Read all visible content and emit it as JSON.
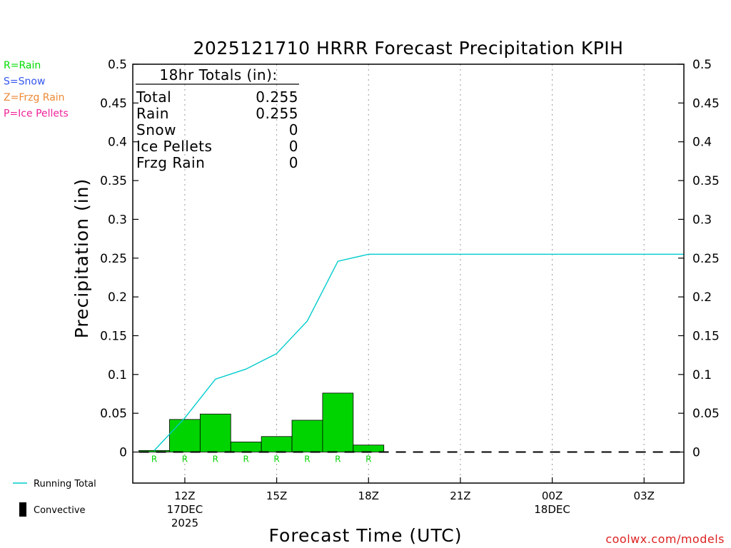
{
  "chart_data": {
    "type": "bar",
    "title": "2025121710 HRRR Forecast Precipitation KPIH",
    "xlabel": "Forecast Time (UTC)",
    "ylabel": "Precipitation (in)",
    "ylim": [
      -0.04,
      0.5
    ],
    "xlim_hours": [
      10.3,
      28.3
    ],
    "y_ticks": [
      "0",
      "0.05",
      "0.1",
      "0.15",
      "0.2",
      "0.25",
      "0.3",
      "0.35",
      "0.4",
      "0.45",
      "0.5"
    ],
    "y_tick_values": [
      0,
      0.05,
      0.1,
      0.15,
      0.2,
      0.25,
      0.3,
      0.35,
      0.4,
      0.45,
      0.5
    ],
    "x_ticks": [
      {
        "hour": 12,
        "label": "12Z",
        "sub1": "17DEC",
        "sub2": "2025"
      },
      {
        "hour": 15,
        "label": "15Z",
        "sub1": "",
        "sub2": ""
      },
      {
        "hour": 18,
        "label": "18Z",
        "sub1": "",
        "sub2": ""
      },
      {
        "hour": 21,
        "label": "21Z",
        "sub1": "",
        "sub2": ""
      },
      {
        "hour": 24,
        "label": "00Z",
        "sub1": "18DEC",
        "sub2": ""
      },
      {
        "hour": 27,
        "label": "03Z",
        "sub1": "",
        "sub2": ""
      }
    ],
    "bars": [
      {
        "hour": 11,
        "value": 0.002,
        "ptype": "R"
      },
      {
        "hour": 12,
        "value": 0.042,
        "ptype": "R"
      },
      {
        "hour": 13,
        "value": 0.049,
        "ptype": "R"
      },
      {
        "hour": 14,
        "value": 0.013,
        "ptype": "R"
      },
      {
        "hour": 15,
        "value": 0.02,
        "ptype": "R"
      },
      {
        "hour": 16,
        "value": 0.041,
        "ptype": "R"
      },
      {
        "hour": 17,
        "value": 0.076,
        "ptype": "R"
      },
      {
        "hour": 18,
        "value": 0.009,
        "ptype": "R"
      }
    ],
    "running_total": {
      "name": "Running Total",
      "x": [
        11,
        12,
        13,
        14,
        15,
        16,
        17,
        18,
        19,
        20,
        21,
        22,
        23,
        24,
        25,
        26,
        27,
        28,
        28.3
      ],
      "y": [
        0.002,
        0.044,
        0.094,
        0.107,
        0.127,
        0.169,
        0.246,
        0.255,
        0.255,
        0.255,
        0.255,
        0.255,
        0.255,
        0.255,
        0.255,
        0.255,
        0.255,
        0.255,
        0.255
      ]
    },
    "convective_line_from_hour": 10.5,
    "totals_box": {
      "heading": "18hr Totals (in):",
      "rows": [
        {
          "label": "Total",
          "value": "0.255"
        },
        {
          "label": "Rain",
          "value": "0.255"
        },
        {
          "label": "Snow",
          "value": "0"
        },
        {
          "label": "Ice Pellets",
          "value": "0"
        },
        {
          "label": "Frzg Rain",
          "value": "0"
        }
      ]
    },
    "ptype_legend": [
      {
        "text": "R=Rain",
        "color": "#00dd00"
      },
      {
        "text": "S=Snow",
        "color": "#3355ee"
      },
      {
        "text": "Z=Frzg Rain",
        "color": "#ee8833"
      },
      {
        "text": "P=Ice Pellets",
        "color": "#ee2299"
      }
    ],
    "series_legend": [
      {
        "name": "Running Total",
        "kind": "line",
        "color": "#00cccc"
      },
      {
        "name": "Convective",
        "kind": "bar",
        "color": "#000000"
      }
    ],
    "colors": {
      "bar": "#00d400",
      "running_total": "#00cccc",
      "grid": "#999999",
      "credit": "#dd2222"
    },
    "credit": "coolwx.com/models"
  }
}
